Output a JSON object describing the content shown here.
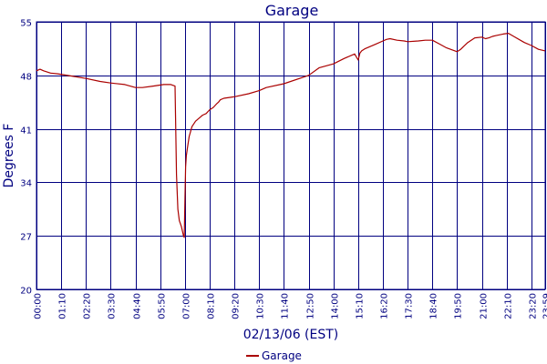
{
  "chart_data": {
    "type": "line",
    "title": "Garage",
    "xlabel": "02/13/06 (EST)",
    "ylabel": "Degrees F",
    "x_tick_labels": [
      "00:00",
      "01:10",
      "02:20",
      "03:30",
      "04:40",
      "05:50",
      "07:00",
      "08:10",
      "09:20",
      "10:30",
      "11:40",
      "12:50",
      "14:00",
      "15:10",
      "16:20",
      "17:30",
      "18:40",
      "19:50",
      "21:00",
      "22:10",
      "23:20",
      "23:59"
    ],
    "x_tick_minutes": [
      0,
      70,
      140,
      210,
      280,
      350,
      420,
      490,
      560,
      630,
      700,
      770,
      840,
      910,
      980,
      1050,
      1120,
      1190,
      1260,
      1330,
      1400,
      1439
    ],
    "xlim": [
      0,
      1439
    ],
    "y_ticks": [
      20,
      27,
      34,
      41,
      48,
      55
    ],
    "ylim": [
      20,
      55
    ],
    "grid": true,
    "legend_position": "bottom-center",
    "series": [
      {
        "name": "Garage",
        "color": "#aa0000",
        "x": [
          0,
          10,
          20,
          40,
          60,
          100,
          140,
          180,
          210,
          250,
          280,
          300,
          330,
          360,
          380,
          392,
          396,
          400,
          404,
          410,
          416,
          418,
          420,
          422,
          424,
          427,
          432,
          440,
          450,
          460,
          470,
          480,
          490,
          500,
          510,
          515,
          520,
          530,
          560,
          600,
          630,
          650,
          700,
          770,
          800,
          840,
          870,
          900,
          910,
          915,
          920,
          930,
          960,
          980,
          990,
          1000,
          1020,
          1040,
          1050,
          1080,
          1100,
          1120,
          1140,
          1160,
          1190,
          1200,
          1220,
          1240,
          1260,
          1270,
          1280,
          1290,
          1300,
          1320,
          1335,
          1350,
          1380,
          1400,
          1420,
          1439
        ],
        "y": [
          48.6,
          48.8,
          48.6,
          48.3,
          48.2,
          47.9,
          47.6,
          47.2,
          47.0,
          46.8,
          46.4,
          46.4,
          46.6,
          46.8,
          46.8,
          46.6,
          35.0,
          30.5,
          29.0,
          28.2,
          27.0,
          26.8,
          32.0,
          36.0,
          37.5,
          38.5,
          40.0,
          41.3,
          42.0,
          42.4,
          42.8,
          43.0,
          43.5,
          43.8,
          44.3,
          44.5,
          44.8,
          45.0,
          45.2,
          45.6,
          46.0,
          46.4,
          46.9,
          48.0,
          49.0,
          49.5,
          50.2,
          50.8,
          50.0,
          50.9,
          51.2,
          51.5,
          52.1,
          52.5,
          52.7,
          52.8,
          52.6,
          52.5,
          52.4,
          52.5,
          52.6,
          52.6,
          52.1,
          51.6,
          51.1,
          51.4,
          52.3,
          52.9,
          53.0,
          52.8,
          52.9,
          53.1,
          53.2,
          53.4,
          53.5,
          53.1,
          52.3,
          51.9,
          51.4,
          51.2
        ]
      }
    ]
  }
}
